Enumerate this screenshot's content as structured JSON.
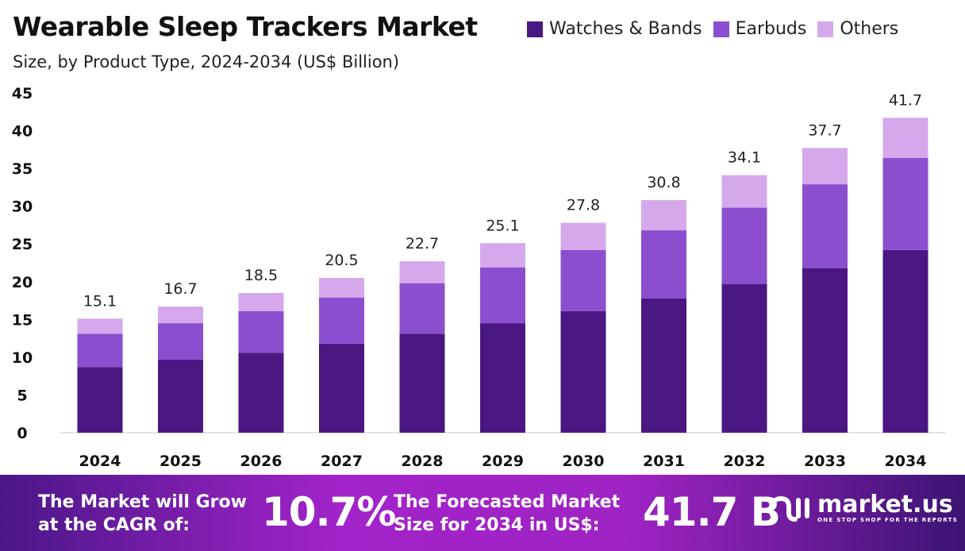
{
  "chart_data": {
    "type": "bar",
    "stacked": true,
    "title": "Wearable Sleep Trackers Market",
    "subtitle": "Size, by Product Type, 2024-2034 (US$ Billion)",
    "categories": [
      "2024",
      "2025",
      "2026",
      "2027",
      "2028",
      "2029",
      "2030",
      "2031",
      "2032",
      "2033",
      "2034"
    ],
    "series": [
      {
        "name": "Watches & Bands",
        "color": "#4b1782",
        "values": [
          8.7,
          9.7,
          10.6,
          11.8,
          13.1,
          14.5,
          16.1,
          17.8,
          19.7,
          21.8,
          24.2
        ]
      },
      {
        "name": "Earbuds",
        "color": "#8a4ecf",
        "values": [
          4.4,
          4.8,
          5.5,
          6.1,
          6.7,
          7.4,
          8.1,
          9.0,
          10.1,
          11.1,
          12.2
        ]
      },
      {
        "name": "Others",
        "color": "#d5a8ec",
        "values": [
          2.0,
          2.2,
          2.4,
          2.6,
          2.9,
          3.2,
          3.6,
          4.0,
          4.3,
          4.8,
          5.3
        ]
      }
    ],
    "totals": [
      "15.1",
      "16.7",
      "18.5",
      "20.5",
      "22.7",
      "25.1",
      "27.8",
      "30.8",
      "34.1",
      "37.7",
      "41.7"
    ],
    "yticks": [
      "0",
      "5",
      "10",
      "15",
      "20",
      "25",
      "30",
      "35",
      "40",
      "45"
    ],
    "ylim": [
      0,
      45
    ],
    "grid": false,
    "legend": "top-right"
  },
  "footer": {
    "cagr_text_1": "The Market will Grow",
    "cagr_text_2": "at the CAGR of:",
    "cagr_value": "10.7%",
    "forecast_text_1": "The Forecasted Market",
    "forecast_text_2": "Size for 2034 in US$:",
    "forecast_value": "41.7 B",
    "brand": "market.us",
    "tagline": "ONE STOP SHOP FOR THE REPORTS"
  }
}
